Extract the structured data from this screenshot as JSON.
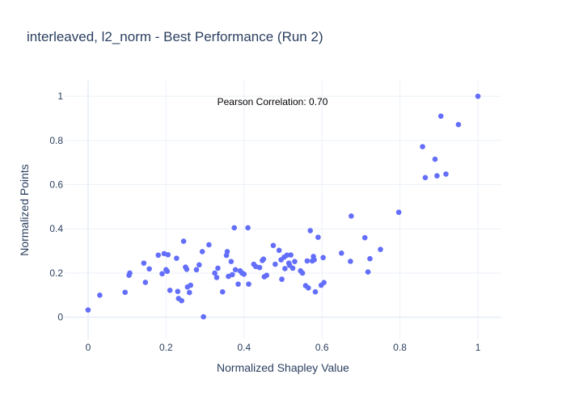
{
  "chart_data": {
    "type": "scatter",
    "title": "interleaved, l2_norm - Best Performance (Run 2)",
    "xlabel": "Normalized Shapley Value",
    "ylabel": "Normalized Points",
    "annotation": "Pearson Correlation: 0.70",
    "xlim": [
      -0.06,
      1.06
    ],
    "ylim": [
      -0.1,
      1.07
    ],
    "xticks": [
      0,
      0.2,
      0.4,
      0.6,
      0.8,
      1
    ],
    "xtick_labels": [
      "0",
      "0.2",
      "0.4",
      "0.6",
      "0.8",
      "1"
    ],
    "yticks": [
      0,
      0.2,
      0.4,
      0.6,
      0.8,
      1
    ],
    "ytick_labels": [
      "0",
      "0.2",
      "0.4",
      "0.6",
      "0.8",
      "1"
    ],
    "grid": true,
    "marker_color": "#636efa",
    "points": [
      [
        0.0,
        0.033
      ],
      [
        0.03,
        0.1
      ],
      [
        0.095,
        0.113
      ],
      [
        0.105,
        0.19
      ],
      [
        0.107,
        0.2
      ],
      [
        0.143,
        0.245
      ],
      [
        0.147,
        0.158
      ],
      [
        0.157,
        0.219
      ],
      [
        0.18,
        0.281
      ],
      [
        0.19,
        0.197
      ],
      [
        0.195,
        0.288
      ],
      [
        0.2,
        0.215
      ],
      [
        0.203,
        0.208
      ],
      [
        0.205,
        0.283
      ],
      [
        0.21,
        0.122
      ],
      [
        0.227,
        0.267
      ],
      [
        0.23,
        0.117
      ],
      [
        0.232,
        0.085
      ],
      [
        0.24,
        0.075
      ],
      [
        0.245,
        0.344
      ],
      [
        0.25,
        0.227
      ],
      [
        0.253,
        0.217
      ],
      [
        0.255,
        0.137
      ],
      [
        0.26,
        0.112
      ],
      [
        0.263,
        0.145
      ],
      [
        0.278,
        0.215
      ],
      [
        0.285,
        0.237
      ],
      [
        0.293,
        0.297
      ],
      [
        0.296,
        0.002
      ],
      [
        0.31,
        0.328
      ],
      [
        0.325,
        0.2
      ],
      [
        0.33,
        0.18
      ],
      [
        0.333,
        0.222
      ],
      [
        0.345,
        0.115
      ],
      [
        0.355,
        0.28
      ],
      [
        0.357,
        0.297
      ],
      [
        0.36,
        0.185
      ],
      [
        0.367,
        0.252
      ],
      [
        0.37,
        0.193
      ],
      [
        0.375,
        0.405
      ],
      [
        0.378,
        0.215
      ],
      [
        0.385,
        0.15
      ],
      [
        0.39,
        0.21
      ],
      [
        0.395,
        0.2
      ],
      [
        0.4,
        0.195
      ],
      [
        0.41,
        0.405
      ],
      [
        0.412,
        0.15
      ],
      [
        0.425,
        0.24
      ],
      [
        0.43,
        0.23
      ],
      [
        0.44,
        0.225
      ],
      [
        0.447,
        0.257
      ],
      [
        0.45,
        0.263
      ],
      [
        0.452,
        0.183
      ],
      [
        0.458,
        0.19
      ],
      [
        0.475,
        0.325
      ],
      [
        0.48,
        0.24
      ],
      [
        0.49,
        0.303
      ],
      [
        0.495,
        0.26
      ],
      [
        0.497,
        0.172
      ],
      [
        0.503,
        0.272
      ],
      [
        0.505,
        0.22
      ],
      [
        0.51,
        0.281
      ],
      [
        0.515,
        0.245
      ],
      [
        0.517,
        0.235
      ],
      [
        0.52,
        0.282
      ],
      [
        0.525,
        0.222
      ],
      [
        0.53,
        0.252
      ],
      [
        0.545,
        0.21
      ],
      [
        0.55,
        0.2
      ],
      [
        0.558,
        0.143
      ],
      [
        0.562,
        0.255
      ],
      [
        0.565,
        0.133
      ],
      [
        0.57,
        0.392
      ],
      [
        0.575,
        0.255
      ],
      [
        0.578,
        0.275
      ],
      [
        0.58,
        0.26
      ],
      [
        0.583,
        0.115
      ],
      [
        0.59,
        0.362
      ],
      [
        0.598,
        0.145
      ],
      [
        0.603,
        0.27
      ],
      [
        0.605,
        0.157
      ],
      [
        0.65,
        0.29
      ],
      [
        0.673,
        0.253
      ],
      [
        0.675,
        0.458
      ],
      [
        0.71,
        0.36
      ],
      [
        0.718,
        0.205
      ],
      [
        0.723,
        0.265
      ],
      [
        0.75,
        0.307
      ],
      [
        0.797,
        0.475
      ],
      [
        0.858,
        0.772
      ],
      [
        0.865,
        0.632
      ],
      [
        0.89,
        0.715
      ],
      [
        0.895,
        0.64
      ],
      [
        0.905,
        0.91
      ],
      [
        0.918,
        0.648
      ],
      [
        0.95,
        0.872
      ],
      [
        1.0,
        1.0
      ]
    ]
  }
}
